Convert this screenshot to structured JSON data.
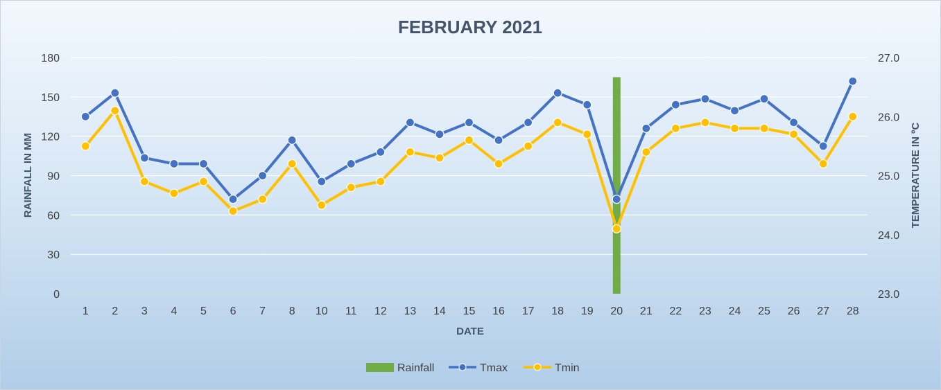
{
  "chart_data": {
    "type": "line",
    "title": "FEBRUARY 2021",
    "xlabel": "DATE",
    "ylabel": "RAINFALL IN MM",
    "y2label": "TEMPERATURE IN ºC",
    "categories": [
      "1",
      "2",
      "3",
      "4",
      "5",
      "6",
      "7",
      "8",
      "10",
      "11",
      "12",
      "13",
      "14",
      "15",
      "16",
      "17",
      "18",
      "19",
      "20",
      "21",
      "22",
      "23",
      "24",
      "25",
      "26",
      "27",
      "28"
    ],
    "ylim": [
      0,
      180
    ],
    "yticks": [
      "0",
      "30",
      "60",
      "90",
      "120",
      "150",
      "180"
    ],
    "y2lim": [
      23.0,
      27.0
    ],
    "y2ticks": [
      "23.0",
      "24.0",
      "25.0",
      "26.0",
      "27.0"
    ],
    "grid": true,
    "legend_position": "bottom",
    "series": [
      {
        "name": "Rainfall",
        "type": "bar",
        "axis": "left",
        "color": "#70ad47",
        "values": [
          0,
          0,
          0,
          0,
          0,
          0,
          0,
          0,
          0,
          0,
          0,
          0,
          0,
          0,
          0,
          0,
          0,
          0,
          165,
          0,
          0,
          0,
          0,
          0,
          0,
          0,
          0
        ]
      },
      {
        "name": "Tmax",
        "type": "line",
        "axis": "right",
        "color": "#4472c4",
        "values": [
          26.0,
          26.4,
          25.3,
          25.2,
          25.2,
          24.6,
          25.0,
          25.6,
          24.9,
          25.2,
          25.4,
          25.9,
          25.7,
          25.9,
          25.6,
          25.9,
          26.4,
          26.2,
          24.6,
          25.8,
          26.2,
          26.3,
          26.1,
          26.3,
          25.9,
          25.5,
          26.6
        ]
      },
      {
        "name": "Tmin",
        "type": "line",
        "axis": "right",
        "color": "#ffc000",
        "values": [
          25.5,
          26.1,
          24.9,
          24.7,
          24.9,
          24.4,
          24.6,
          25.2,
          24.5,
          24.8,
          24.9,
          25.4,
          25.3,
          25.6,
          25.2,
          25.5,
          25.9,
          25.7,
          24.1,
          25.4,
          25.8,
          25.9,
          25.8,
          25.8,
          25.7,
          25.2,
          26.0
        ]
      }
    ]
  }
}
